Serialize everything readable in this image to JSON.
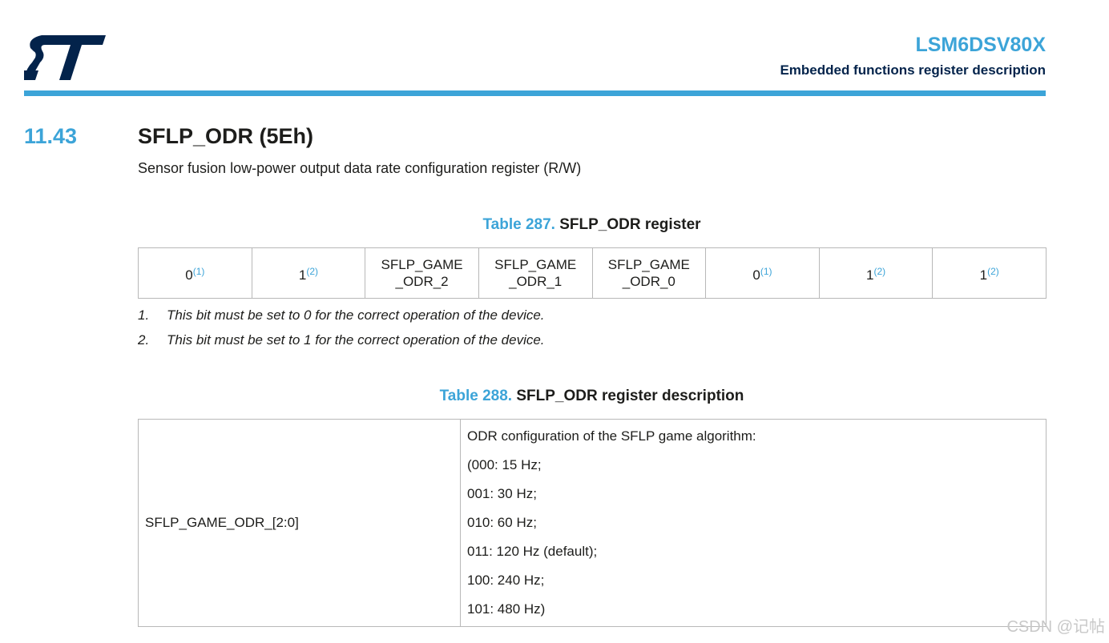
{
  "header": {
    "title": "LSM6DSV80X",
    "subtitle": "Embedded functions register description"
  },
  "section": {
    "number": "11.43",
    "title": "SFLP_ODR (5Eh)",
    "description": "Sensor fusion low-power output data rate configuration register (R/W)"
  },
  "table1": {
    "caption_number": "Table 287.",
    "caption_title": "SFLP_ODR register",
    "cells": [
      {
        "lines": [
          "0"
        ],
        "sup": "(1)"
      },
      {
        "lines": [
          "1"
        ],
        "sup": "(2)"
      },
      {
        "lines": [
          "SFLP_GAME",
          "_ODR_2"
        ]
      },
      {
        "lines": [
          "SFLP_GAME",
          "_ODR_1"
        ]
      },
      {
        "lines": [
          "SFLP_GAME",
          "_ODR_0"
        ]
      },
      {
        "lines": [
          "0"
        ],
        "sup": "(1)"
      },
      {
        "lines": [
          "1"
        ],
        "sup": "(2)"
      },
      {
        "lines": [
          "1"
        ],
        "sup": "(2)"
      }
    ]
  },
  "footnotes": [
    {
      "number": "1.",
      "text": "This bit must be set to 0 for the correct operation of the device."
    },
    {
      "number": "2.",
      "text": "This bit must be set to 1 for the correct operation of the device."
    }
  ],
  "table2": {
    "caption_number": "Table 288.",
    "caption_title": "SFLP_ODR register description",
    "field": "SFLP_GAME_ODR_[2:0]",
    "description_lines": [
      "ODR configuration of the SFLP game algorithm:",
      "(000: 15 Hz;",
      "001: 30 Hz;",
      "010: 60 Hz;",
      "011: 120 Hz (default);",
      "100: 240 Hz;",
      "101: 480 Hz)"
    ]
  },
  "watermark": "CSDN @记帖"
}
